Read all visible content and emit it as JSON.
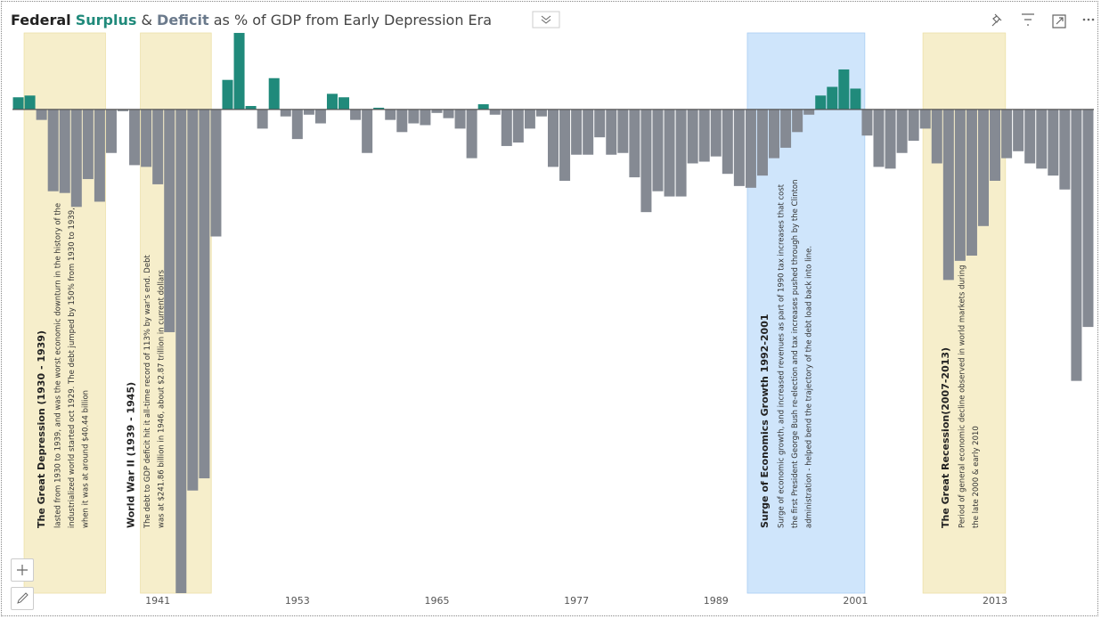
{
  "chart_data": {
    "type": "bar",
    "title": [
      "Federal",
      "Surplus",
      "&",
      "Deficit",
      "as % of GDP from Early Depression Era"
    ],
    "x": [
      1929,
      1930,
      1931,
      1932,
      1933,
      1934,
      1935,
      1936,
      1937,
      1938,
      1939,
      1940,
      1941,
      1942,
      1943,
      1944,
      1945,
      1946,
      1947,
      1948,
      1949,
      1950,
      1951,
      1952,
      1953,
      1954,
      1955,
      1956,
      1957,
      1958,
      1959,
      1960,
      1961,
      1962,
      1963,
      1964,
      1965,
      1966,
      1967,
      1968,
      1969,
      1970,
      1971,
      1972,
      1973,
      1974,
      1975,
      1976,
      1977,
      1978,
      1979,
      1980,
      1981,
      1982,
      1983,
      1984,
      1985,
      1986,
      1987,
      1988,
      1989,
      1990,
      1991,
      1992,
      1993,
      1994,
      1995,
      1996,
      1997,
      1998,
      1999,
      2000,
      2001,
      2002,
      2003,
      2004,
      2005,
      2006,
      2007,
      2008,
      2009,
      2010,
      2011,
      2012,
      2013,
      2014,
      2015,
      2016,
      2017,
      2018,
      2019,
      2020,
      2021
    ],
    "values": [
      0.7,
      0.8,
      -0.6,
      -4.7,
      -4.8,
      -5.6,
      -4.0,
      -5.3,
      -2.5,
      -0.1,
      -3.2,
      -3.3,
      -4.3,
      -12.8,
      -27.8,
      -21.9,
      -21.2,
      -7.3,
      1.7,
      4.4,
      0.2,
      -1.1,
      1.8,
      -0.4,
      -1.7,
      -0.3,
      -0.8,
      0.9,
      0.7,
      -0.6,
      -2.5,
      0.1,
      -0.6,
      -1.3,
      -0.8,
      -0.9,
      -0.2,
      -0.5,
      -1.1,
      -2.8,
      0.3,
      -0.3,
      -2.1,
      -1.9,
      -1.1,
      -0.4,
      -3.3,
      -4.1,
      -2.6,
      -2.6,
      -1.6,
      -2.6,
      -2.5,
      -3.9,
      -5.9,
      -4.7,
      -5.0,
      -5.0,
      -3.1,
      -3.0,
      -2.7,
      -3.7,
      -4.4,
      -4.5,
      -3.8,
      -2.8,
      -2.2,
      -1.3,
      -0.3,
      0.8,
      1.3,
      2.3,
      1.2,
      -1.5,
      -3.3,
      -3.4,
      -2.5,
      -1.8,
      -1.1,
      -3.1,
      -9.8,
      -8.7,
      -8.4,
      -6.7,
      -4.1,
      -2.8,
      -2.4,
      -3.1,
      -3.4,
      -3.8,
      -4.6,
      -15.6,
      -12.5
    ],
    "colors": {
      "positive": "#208a7b",
      "negative": "#858a93"
    },
    "xlim": [
      1928.5,
      2021.5
    ],
    "xticks": [
      1941,
      1953,
      1965,
      1977,
      1989,
      2001,
      2013
    ],
    "ylim": [
      -27.8,
      4.5
    ],
    "annotations": [
      {
        "x": [
          1929.5,
          1936.5
        ],
        "color": "#f6eecb",
        "title": "The Great Depression (1930 - 1939)",
        "lines": [
          "lasted from 1930 to 1939, and was the worst economic downturn in the history of the",
          "industrialized world started oct 1929. The debt jumped by 150% from 1930 to 1939,",
          "when it was at around $40.44 billion"
        ]
      },
      {
        "x": [
          1939.5,
          1945.6
        ],
        "color": "#f6eecb",
        "title": "World War II (1939 - 1945)",
        "lines": [
          "The debt to GDP deficit hit it all-time record of 113% by war's end. Debt",
          "was at $241.86 billion in 1946, about $2.87 trillion in current dollars"
        ]
      },
      {
        "x": [
          1991.7,
          2001.8
        ],
        "color": "#cfe5fb",
        "title": "Surge of Economics Growth 1992-2001",
        "lines": [
          "Surge of economic growth, and increased revenues as part of 1990 tax increases that cost",
          "the first President George Bush re-election and tax increases pushed through by the Clinton",
          "administration - helped bend the trajectory of the debt load back into line."
        ]
      },
      {
        "x": [
          2006.8,
          2013.9
        ],
        "color": "#f6eecb",
        "title": "The Great Recession(2007-2013)",
        "lines": [
          "Period of general economic decline observed in world markets during",
          "the late 2000 & early 2010"
        ]
      }
    ]
  }
}
